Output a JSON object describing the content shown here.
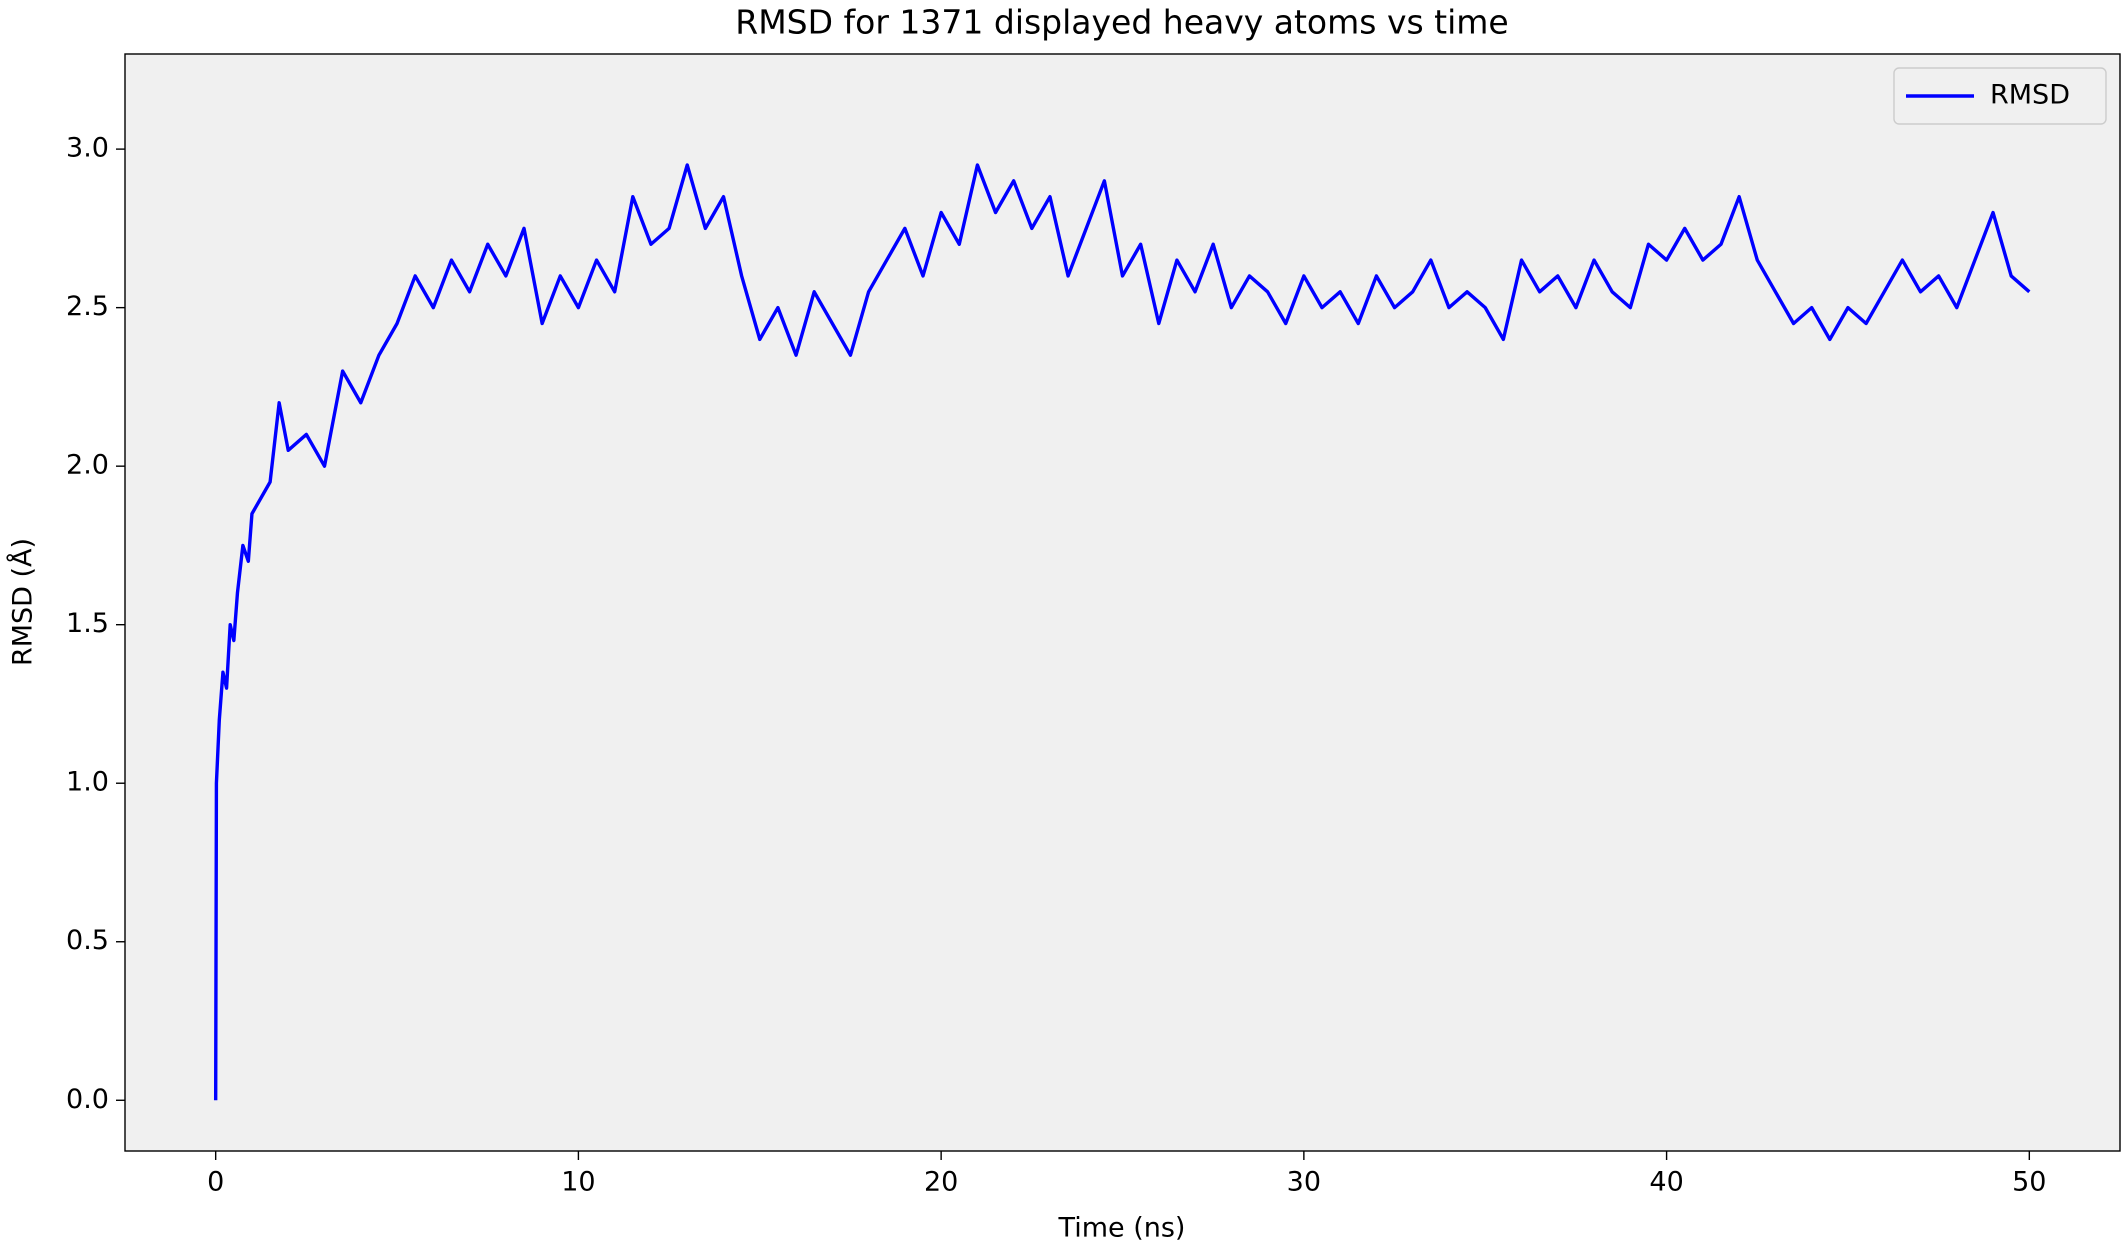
{
  "chart_data": {
    "type": "line",
    "title": "RMSD for 1371 displayed heavy atoms vs time",
    "x_label": "Time (ns)",
    "y_label": "RMSD (Å)",
    "xlim": [
      -2.5,
      52.5
    ],
    "ylim": [
      -0.16,
      3.3
    ],
    "xticks": [
      0,
      10,
      20,
      30,
      40,
      50
    ],
    "yticks": [
      {
        "value": 0,
        "label": "0.0"
      },
      0.5,
      {
        "value": 1,
        "label": "1.0"
      },
      1.5,
      {
        "value": 2,
        "label": "2.0"
      },
      2.5,
      {
        "value": 3,
        "label": "3.0"
      }
    ],
    "legend": "upper right",
    "x": [
      0,
      0.02,
      0.1,
      0.2,
      0.3,
      0.4,
      0.5,
      0.6,
      0.75,
      0.9,
      1,
      1.25,
      1.5,
      1.75,
      2,
      2.5,
      3,
      3.5,
      4,
      4.5,
      5,
      5.5,
      6,
      6.5,
      7,
      7.5,
      8,
      8.5,
      9,
      9.5,
      10,
      10.5,
      11,
      11.5,
      12,
      12.5,
      13,
      13.5,
      14,
      14.5,
      15,
      15.5,
      16,
      16.5,
      17,
      17.5,
      18,
      18.5,
      19,
      19.5,
      20,
      20.5,
      21,
      21.5,
      22,
      22.5,
      23,
      23.5,
      24,
      24.5,
      25,
      25.5,
      26,
      26.5,
      27,
      27.5,
      28,
      28.5,
      29,
      29.5,
      30,
      30.5,
      31,
      31.5,
      32,
      32.5,
      33,
      33.5,
      34,
      34.5,
      35,
      35.5,
      36,
      36.5,
      37,
      37.5,
      38,
      38.5,
      39,
      39.5,
      40,
      40.5,
      41,
      41.5,
      42,
      42.5,
      43,
      43.5,
      44,
      44.5,
      45,
      45.5,
      46,
      46.5,
      47,
      47.5,
      48,
      48.5,
      49,
      49.5,
      50
    ],
    "series": [
      {
        "name": "RMSD",
        "color": "#0000ff",
        "values": [
          0,
          1.0,
          1.2,
          1.35,
          1.3,
          1.5,
          1.45,
          1.6,
          1.75,
          1.7,
          1.85,
          1.9,
          1.95,
          2.2,
          2.05,
          2.1,
          2.0,
          2.3,
          2.2,
          2.35,
          2.45,
          2.6,
          2.5,
          2.65,
          2.55,
          2.7,
          2.6,
          2.75,
          2.45,
          2.6,
          2.5,
          2.65,
          2.55,
          2.85,
          2.7,
          2.75,
          2.95,
          2.75,
          2.85,
          2.6,
          2.4,
          2.5,
          2.35,
          2.55,
          2.45,
          2.35,
          2.55,
          2.65,
          2.75,
          2.6,
          2.8,
          2.7,
          2.95,
          2.8,
          2.9,
          2.75,
          2.85,
          2.6,
          2.75,
          2.9,
          2.6,
          2.7,
          2.45,
          2.65,
          2.55,
          2.7,
          2.5,
          2.6,
          2.55,
          2.45,
          2.6,
          2.5,
          2.55,
          2.45,
          2.6,
          2.5,
          2.55,
          2.65,
          2.5,
          2.55,
          2.5,
          2.4,
          2.65,
          2.55,
          2.6,
          2.5,
          2.65,
          2.55,
          2.5,
          2.7,
          2.65,
          2.75,
          2.65,
          2.7,
          2.85,
          2.65,
          2.55,
          2.45,
          2.5,
          2.4,
          2.5,
          2.45,
          2.55,
          2.65,
          2.55,
          2.6,
          2.5,
          2.65,
          2.8,
          2.6,
          2.55
        ]
      }
    ]
  }
}
